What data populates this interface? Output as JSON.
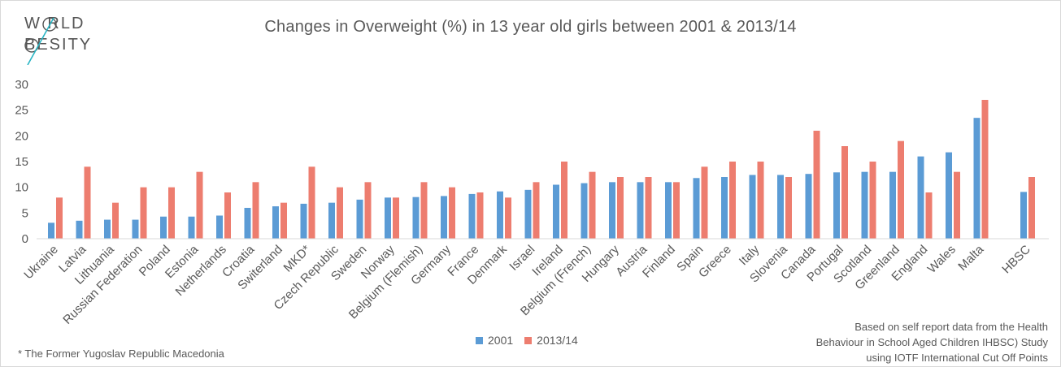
{
  "logo": {
    "line1": "W RLD",
    "line2": "BESITY",
    "accent": "#29b5c4"
  },
  "legend": {
    "series1": "2001",
    "series2": "2013/14"
  },
  "notes": {
    "footnote": "* The Former Yugoslav Republic  Macedonia",
    "source_line1": "Based on self report data from the Health",
    "source_line2": "Behaviour in School Aged Children IHBSC) Study",
    "source_line3": "using IOTF International Cut Off Points"
  },
  "colors": {
    "series1": "#5b9bd5",
    "series2": "#ed7d6f",
    "text": "#595959"
  },
  "chart_data": {
    "type": "bar",
    "title": "Changes in Overweight (%) in 13 year old girls between 2001 & 2013/14",
    "xlabel": "",
    "ylabel": "",
    "ylim": [
      0,
      30
    ],
    "yticks": [
      0,
      5,
      10,
      15,
      20,
      25,
      30
    ],
    "grid": false,
    "legend_position": "bottom",
    "categories": [
      "Ukraine",
      "Latvia",
      "Lithuania",
      "Russian Federation",
      "Poland",
      "Estonia",
      "Netherlands",
      "Croatia",
      "Switerland",
      "MKD*",
      "Czech Republic",
      "Sweden",
      "Norway",
      "Belgium (Flemish)",
      "Germany",
      "France",
      "Denmark",
      "Israel",
      "Ireland",
      "Belgium (French)",
      "Hungary",
      "Austria",
      "Finland",
      "Spain",
      "Greece",
      "Italy",
      "Slovenia",
      "Canada",
      "Portugal",
      "Scotland",
      "Greenland",
      "England",
      "Wales",
      "Malta",
      "HBSC"
    ],
    "series": [
      {
        "name": "2001",
        "values": [
          3.1,
          3.5,
          3.7,
          3.7,
          4.3,
          4.3,
          4.5,
          6.0,
          6.3,
          6.8,
          7.0,
          7.6,
          8.0,
          8.1,
          8.3,
          8.7,
          9.2,
          9.5,
          10.5,
          10.8,
          11.0,
          11.0,
          11.0,
          11.8,
          12.0,
          12.4,
          12.4,
          12.6,
          12.9,
          13.0,
          13.0,
          16.0,
          16.8,
          23.5,
          9.1
        ]
      },
      {
        "name": "2013/14",
        "values": [
          8.0,
          14.0,
          7.0,
          10.0,
          10.0,
          13.0,
          9.0,
          11.0,
          7.0,
          14.0,
          10.0,
          11.0,
          8.0,
          11.0,
          10.0,
          9.0,
          8.0,
          11.0,
          15.0,
          13.0,
          12.0,
          12.0,
          11.0,
          14.0,
          15.0,
          15.0,
          12.0,
          21.0,
          18.0,
          15.0,
          19.0,
          9.0,
          13.0,
          27.0,
          12.0
        ]
      }
    ]
  }
}
